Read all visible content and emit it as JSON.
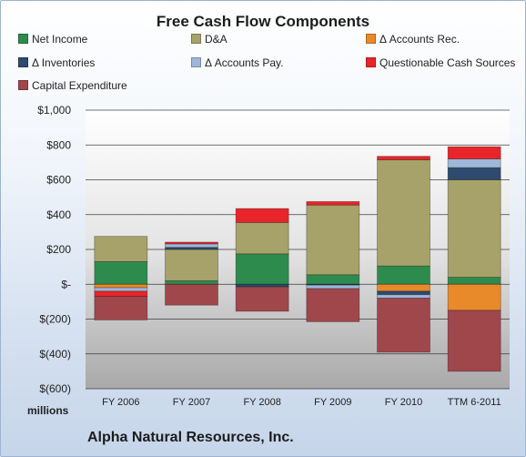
{
  "chart_data": {
    "type": "bar",
    "stacked": true,
    "title": "Free Cash Flow Components",
    "units_label": "millions",
    "footer": "Alpha Natural Resources, Inc.",
    "categories": [
      "FY 2006",
      "FY 2007",
      "FY 2008",
      "FY 2009",
      "FY 2010",
      "TTM 6-2011"
    ],
    "ylim": [
      -600,
      1000
    ],
    "yticks": [
      1000,
      800,
      600,
      400,
      200,
      0,
      -200,
      -400,
      -600
    ],
    "ytick_labels": [
      "$1,000",
      "$800",
      "$600",
      "$400",
      "$200",
      "$-",
      "$(200)",
      "$(400)",
      "$(600)"
    ],
    "grid": true,
    "legend_position": "top",
    "series": [
      {
        "name": "Net Income",
        "color": "#2e8b4e",
        "values": [
          130,
          20,
          175,
          55,
          105,
          40
        ]
      },
      {
        "name": "D&A",
        "color": "#a6a26a",
        "values": [
          145,
          180,
          180,
          400,
          610,
          560
        ]
      },
      {
        "name": "Δ Accounts Rec.",
        "color": "#e88a2a",
        "values": [
          -20,
          0,
          0,
          0,
          -40,
          -150
        ]
      },
      {
        "name": "Δ Inventories",
        "color": "#2e4a6e",
        "values": [
          0,
          12,
          -15,
          -5,
          -20,
          70
        ]
      },
      {
        "name": "Δ Accounts Pay.",
        "color": "#9fb7d8",
        "values": [
          -20,
          20,
          0,
          -20,
          -20,
          50
        ]
      },
      {
        "name": "Questionable Cash Sources",
        "color": "#e8252a",
        "values": [
          -30,
          10,
          80,
          20,
          20,
          70
        ]
      },
      {
        "name": "Capital Expenditure",
        "color": "#a0474c",
        "values": [
          -135,
          -120,
          -140,
          -190,
          -310,
          -350
        ]
      }
    ]
  }
}
